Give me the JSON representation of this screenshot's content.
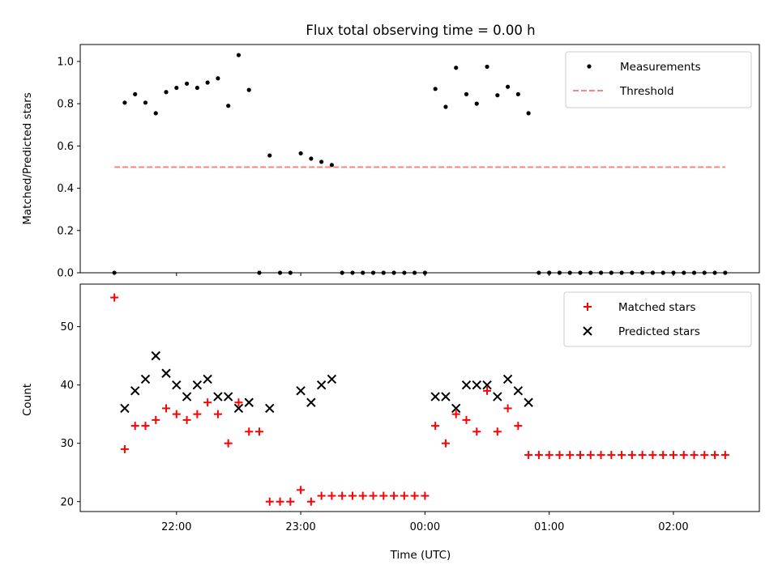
{
  "chart_data": [
    {
      "type": "scatter",
      "title": "Flux total observing time = 0.00 h",
      "xlabel": "",
      "ylabel": "Matched/Predicted stars",
      "ylim": [
        0.0,
        1.08
      ],
      "yticks": [
        "0.0",
        "0.2",
        "0.4",
        "0.6",
        "0.8",
        "1.0"
      ],
      "grid": false,
      "legend_position": "top-right",
      "series": [
        {
          "name": "Measurements",
          "kind": "scatter",
          "marker": "dot",
          "color": "#000000",
          "points": [
            [
              "21:30",
              0.0
            ],
            [
              "21:35",
              0.805
            ],
            [
              "21:40",
              0.845
            ],
            [
              "21:45",
              0.805
            ],
            [
              "21:50",
              0.755
            ],
            [
              "21:55",
              0.855
            ],
            [
              "22:00",
              0.875
            ],
            [
              "22:05",
              0.895
            ],
            [
              "22:10",
              0.875
            ],
            [
              "22:15",
              0.9
            ],
            [
              "22:20",
              0.92
            ],
            [
              "22:25",
              0.79
            ],
            [
              "22:30",
              1.03
            ],
            [
              "22:35",
              0.865
            ],
            [
              "22:40",
              0.0
            ],
            [
              "22:45",
              0.555
            ],
            [
              "22:50",
              0.0
            ],
            [
              "22:55",
              0.0
            ],
            [
              "23:00",
              0.565
            ],
            [
              "23:05",
              0.54
            ],
            [
              "23:10",
              0.525
            ],
            [
              "23:15",
              0.51
            ],
            [
              "23:20",
              0.0
            ],
            [
              "23:25",
              0.0
            ],
            [
              "23:30",
              0.0
            ],
            [
              "23:35",
              0.0
            ],
            [
              "23:40",
              0.0
            ],
            [
              "23:45",
              0.0
            ],
            [
              "23:50",
              0.0
            ],
            [
              "23:55",
              0.0
            ],
            [
              "00:00",
              0.0
            ],
            [
              "00:05",
              0.87
            ],
            [
              "00:10",
              0.785
            ],
            [
              "00:15",
              0.97
            ],
            [
              "00:20",
              0.845
            ],
            [
              "00:25",
              0.8
            ],
            [
              "00:30",
              0.975
            ],
            [
              "00:35",
              0.84
            ],
            [
              "00:40",
              0.88
            ],
            [
              "00:45",
              0.845
            ],
            [
              "00:50",
              0.755
            ],
            [
              "00:55",
              0.0
            ],
            [
              "01:00",
              0.0
            ],
            [
              "01:05",
              0.0
            ],
            [
              "01:10",
              0.0
            ],
            [
              "01:15",
              0.0
            ],
            [
              "01:20",
              0.0
            ],
            [
              "01:25",
              0.0
            ],
            [
              "01:30",
              0.0
            ],
            [
              "01:35",
              0.0
            ],
            [
              "01:40",
              0.0
            ],
            [
              "01:45",
              0.0
            ],
            [
              "01:50",
              0.0
            ],
            [
              "01:55",
              0.0
            ],
            [
              "02:00",
              0.0
            ],
            [
              "02:05",
              0.0
            ],
            [
              "02:10",
              0.0
            ],
            [
              "02:15",
              0.0
            ],
            [
              "02:20",
              0.0
            ],
            [
              "02:25",
              0.0
            ]
          ]
        },
        {
          "name": "Threshold",
          "kind": "line",
          "style": "dashed",
          "color": "#ff8080",
          "points": [
            [
              "21:30",
              0.5
            ],
            [
              "02:25",
              0.5
            ]
          ]
        }
      ]
    },
    {
      "type": "scatter",
      "title": "",
      "xlabel": "Time (UTC)",
      "ylabel": "Count",
      "ylim": [
        18.3,
        57.3
      ],
      "yticks": [
        "20",
        "30",
        "40",
        "50"
      ],
      "xticks": [
        "22:00",
        "23:00",
        "00:00",
        "01:00",
        "02:00"
      ],
      "grid": false,
      "legend_position": "top-right",
      "series": [
        {
          "name": "Matched stars",
          "kind": "scatter",
          "marker": "plus",
          "color": "#ff0000",
          "points": [
            [
              "21:30",
              55
            ],
            [
              "21:35",
              29
            ],
            [
              "21:40",
              33
            ],
            [
              "21:45",
              33
            ],
            [
              "21:50",
              34
            ],
            [
              "21:55",
              36
            ],
            [
              "22:00",
              35
            ],
            [
              "22:05",
              34
            ],
            [
              "22:10",
              35
            ],
            [
              "22:15",
              37
            ],
            [
              "22:20",
              35
            ],
            [
              "22:25",
              30
            ],
            [
              "22:30",
              37
            ],
            [
              "22:35",
              32
            ],
            [
              "22:40",
              32
            ],
            [
              "22:45",
              20
            ],
            [
              "22:50",
              20
            ],
            [
              "22:55",
              20
            ],
            [
              "23:00",
              22
            ],
            [
              "23:05",
              20
            ],
            [
              "23:10",
              21
            ],
            [
              "23:15",
              21
            ],
            [
              "23:20",
              21
            ],
            [
              "23:25",
              21
            ],
            [
              "23:30",
              21
            ],
            [
              "23:35",
              21
            ],
            [
              "23:40",
              21
            ],
            [
              "23:45",
              21
            ],
            [
              "23:50",
              21
            ],
            [
              "23:55",
              21
            ],
            [
              "00:00",
              21
            ],
            [
              "00:05",
              33
            ],
            [
              "00:10",
              30
            ],
            [
              "00:15",
              35
            ],
            [
              "00:20",
              34
            ],
            [
              "00:25",
              32
            ],
            [
              "00:30",
              39
            ],
            [
              "00:35",
              32
            ],
            [
              "00:40",
              36
            ],
            [
              "00:45",
              33
            ],
            [
              "00:50",
              28
            ],
            [
              "00:55",
              28
            ],
            [
              "01:00",
              28
            ],
            [
              "01:05",
              28
            ],
            [
              "01:10",
              28
            ],
            [
              "01:15",
              28
            ],
            [
              "01:20",
              28
            ],
            [
              "01:25",
              28
            ],
            [
              "01:30",
              28
            ],
            [
              "01:35",
              28
            ],
            [
              "01:40",
              28
            ],
            [
              "01:45",
              28
            ],
            [
              "01:50",
              28
            ],
            [
              "01:55",
              28
            ],
            [
              "02:00",
              28
            ],
            [
              "02:05",
              28
            ],
            [
              "02:10",
              28
            ],
            [
              "02:15",
              28
            ],
            [
              "02:20",
              28
            ],
            [
              "02:25",
              28
            ]
          ]
        },
        {
          "name": "Predicted stars",
          "kind": "scatter",
          "marker": "x",
          "color": "#000000",
          "points": [
            [
              "21:35",
              36
            ],
            [
              "21:40",
              39
            ],
            [
              "21:45",
              41
            ],
            [
              "21:50",
              45
            ],
            [
              "21:55",
              42
            ],
            [
              "22:00",
              40
            ],
            [
              "22:05",
              38
            ],
            [
              "22:10",
              40
            ],
            [
              "22:15",
              41
            ],
            [
              "22:20",
              38
            ],
            [
              "22:25",
              38
            ],
            [
              "22:30",
              36
            ],
            [
              "22:35",
              37
            ],
            [
              "22:45",
              36
            ],
            [
              "23:00",
              39
            ],
            [
              "23:05",
              37
            ],
            [
              "23:10",
              40
            ],
            [
              "23:15",
              41
            ],
            [
              "00:05",
              38
            ],
            [
              "00:10",
              38
            ],
            [
              "00:15",
              36
            ],
            [
              "00:20",
              40
            ],
            [
              "00:25",
              40
            ],
            [
              "00:30",
              40
            ],
            [
              "00:35",
              38
            ],
            [
              "00:40",
              41
            ],
            [
              "00:45",
              39
            ],
            [
              "00:50",
              37
            ]
          ]
        }
      ]
    }
  ]
}
